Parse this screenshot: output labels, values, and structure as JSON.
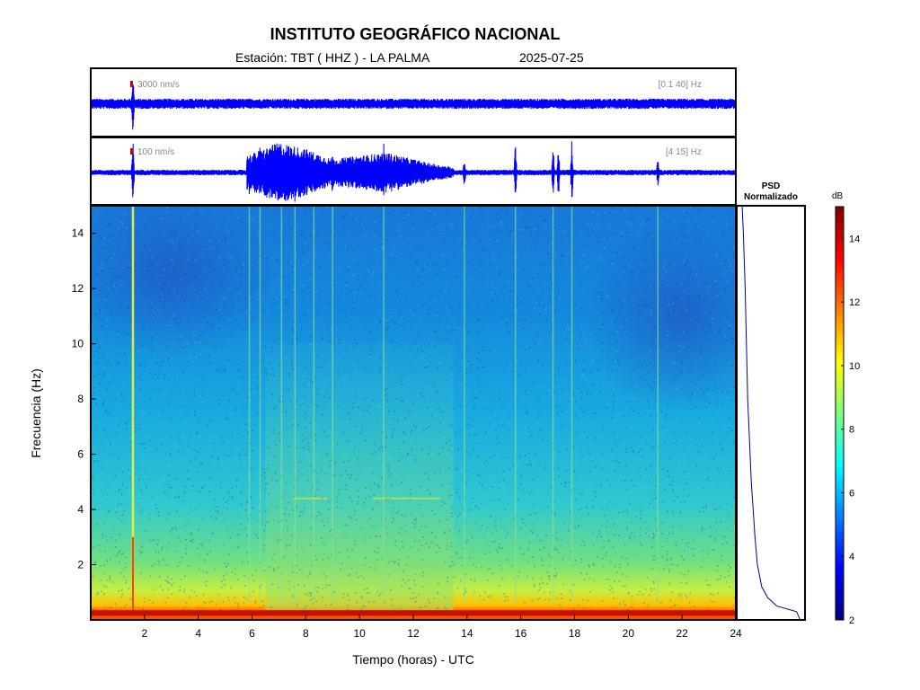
{
  "header": {
    "institution": "INSTITUTO GEOGRÁFICO NACIONAL",
    "station": "Estación:  TBT ( HHZ ) - LA PALMA",
    "date": "2025-07-25"
  },
  "chart_data": [
    {
      "type": "line",
      "name": "seismogram-broadband",
      "scale_label": "3000 nm/s",
      "filter_label": "[0.1 40] Hz",
      "x_range": [
        0,
        24
      ],
      "color": "#0000ff",
      "baseline_amplitude": 0.15,
      "events": [
        {
          "t": 1.57,
          "amplitude": 1.0
        }
      ]
    },
    {
      "type": "line",
      "name": "seismogram-filtered",
      "scale_label": "100 nm/s",
      "filter_label": "[4 15] Hz",
      "x_range": [
        0,
        24
      ],
      "color": "#0000ff",
      "baseline_amplitude": 0.08,
      "tremor_envelope": [
        {
          "t": 5.8,
          "amplitude": 0.5
        },
        {
          "t": 7.0,
          "amplitude": 0.9
        },
        {
          "t": 8.0,
          "amplitude": 0.7
        },
        {
          "t": 9.0,
          "amplitude": 0.4
        },
        {
          "t": 10.0,
          "amplitude": 0.5
        },
        {
          "t": 11.0,
          "amplitude": 0.6
        },
        {
          "t": 12.5,
          "amplitude": 0.3
        },
        {
          "t": 13.5,
          "amplitude": 0.15
        }
      ],
      "events": [
        {
          "t": 1.57,
          "amplitude": 1.0
        },
        {
          "t": 5.9,
          "amplitude": 0.7
        },
        {
          "t": 6.3,
          "amplitude": 0.9
        },
        {
          "t": 6.5,
          "amplitude": 0.8
        },
        {
          "t": 7.1,
          "amplitude": 0.9
        },
        {
          "t": 7.6,
          "amplitude": 1.0
        },
        {
          "t": 8.3,
          "amplitude": 0.6
        },
        {
          "t": 9.0,
          "amplitude": 0.8
        },
        {
          "t": 10.0,
          "amplitude": 0.6
        },
        {
          "t": 10.9,
          "amplitude": 0.9
        },
        {
          "t": 13.9,
          "amplitude": 0.5
        },
        {
          "t": 15.8,
          "amplitude": 0.9
        },
        {
          "t": 17.2,
          "amplitude": 1.0
        },
        {
          "t": 17.4,
          "amplitude": 0.8
        },
        {
          "t": 17.9,
          "amplitude": 1.0
        },
        {
          "t": 21.1,
          "amplitude": 0.5
        }
      ]
    },
    {
      "type": "heatmap",
      "name": "spectrogram",
      "xlabel": "Tiempo (horas) - UTC",
      "ylabel": "Frecuencia  (Hz)",
      "xlim": [
        0,
        24
      ],
      "ylim": [
        0,
        15
      ],
      "xticks": [
        2,
        4,
        6,
        8,
        10,
        12,
        14,
        16,
        18,
        20,
        22,
        24
      ],
      "yticks": [
        2,
        4,
        6,
        8,
        10,
        12,
        14
      ],
      "colormap": "jet",
      "event_lines_hours": [
        1.57,
        5.9,
        6.3,
        7.1,
        7.6,
        8.3,
        9.0,
        10.9,
        13.9,
        15.8,
        17.2,
        17.9,
        21.1
      ],
      "tremor_interval_hours": [
        6.5,
        13.5
      ],
      "harmonic_band_hz": 4.4
    },
    {
      "type": "line",
      "name": "psd",
      "title": "PSD\nNormalizado",
      "color": "#000099",
      "profile": [
        {
          "f": 0.0,
          "v": 0.98
        },
        {
          "f": 0.3,
          "v": 0.92
        },
        {
          "f": 0.5,
          "v": 0.6
        },
        {
          "f": 0.8,
          "v": 0.45
        },
        {
          "f": 1.2,
          "v": 0.35
        },
        {
          "f": 2.0,
          "v": 0.28
        },
        {
          "f": 3.0,
          "v": 0.24
        },
        {
          "f": 4.0,
          "v": 0.21
        },
        {
          "f": 5.0,
          "v": 0.18
        },
        {
          "f": 6.0,
          "v": 0.16
        },
        {
          "f": 8.0,
          "v": 0.12
        },
        {
          "f": 10.0,
          "v": 0.1
        },
        {
          "f": 12.0,
          "v": 0.08
        },
        {
          "f": 14.0,
          "v": 0.05
        },
        {
          "f": 15.0,
          "v": 0.03
        }
      ]
    },
    {
      "type": "colorbar",
      "name": "colorbar",
      "unit": "dB",
      "range": [
        2,
        15
      ],
      "ticks": [
        2,
        4,
        6,
        8,
        10,
        12,
        14
      ]
    }
  ]
}
